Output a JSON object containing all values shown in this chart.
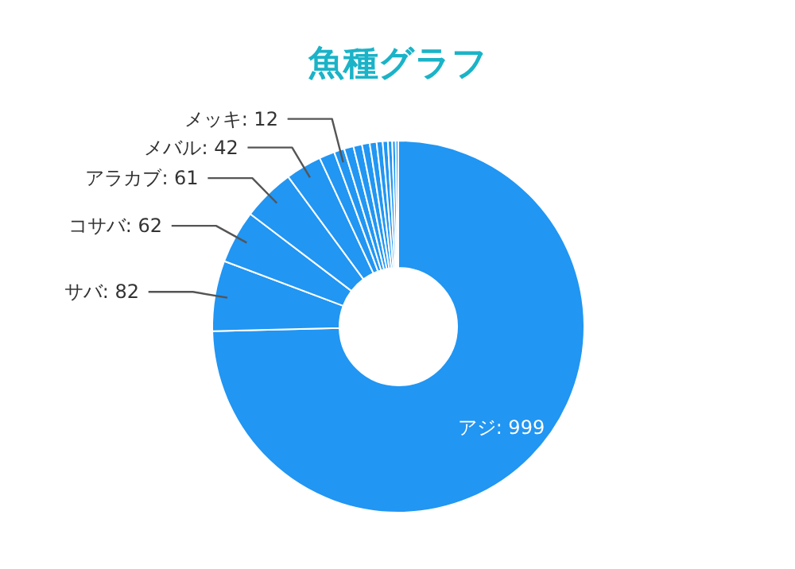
{
  "chart_data": {
    "type": "donut",
    "title": "魚種グラフ",
    "categories": [
      "アジ",
      "サバ",
      "コサバ",
      "アラカブ",
      "メバル",
      null,
      "メッキ",
      null,
      null,
      null,
      null,
      null,
      null,
      null,
      null,
      null
    ],
    "values": [
      999,
      82,
      62,
      61,
      42,
      18,
      12,
      11,
      10,
      9,
      8,
      7,
      6,
      5,
      4,
      3
    ],
    "value_labels": [
      ": 999",
      ": 82",
      ": 62",
      ": 61",
      ": 42",
      null,
      ": 12",
      null,
      null,
      null,
      null,
      null,
      null,
      null,
      null,
      null
    ],
    "colors": [
      "#2196f3",
      "#2196f3",
      "#2196f3",
      "#2196f3",
      "#2196f3",
      "#2196f3",
      "#2196f3",
      "#2196f3",
      "#2196f3",
      "#2196f3",
      "#2196f3",
      "#2196f3",
      "#2196f3",
      "#2196f3",
      "#2196f3",
      "#2196f3"
    ]
  }
}
